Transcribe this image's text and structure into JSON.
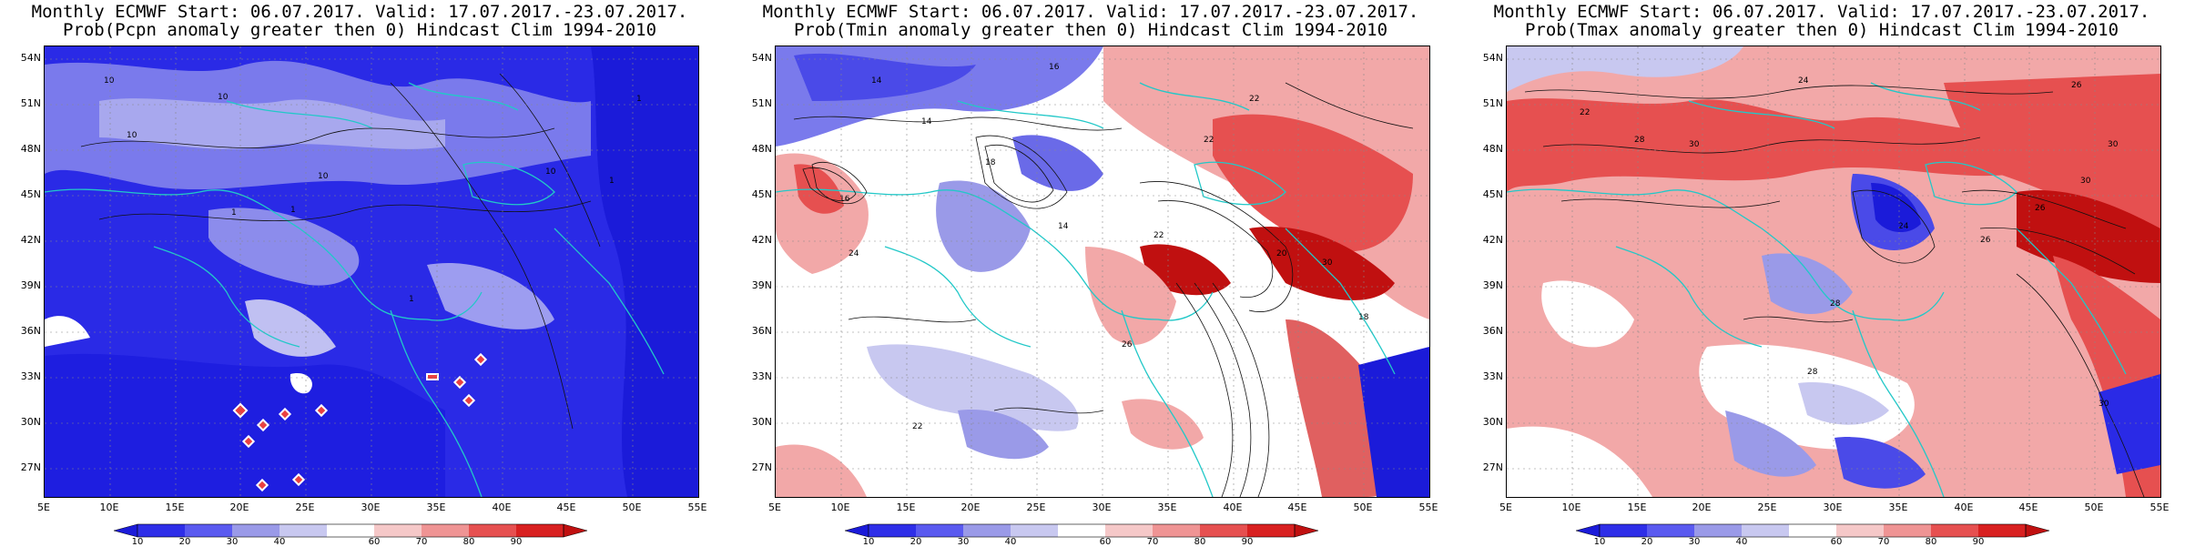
{
  "panels": [
    {
      "title_line1": "Monthly ECMWF Start: 06.07.2017. Valid: 17.07.2017.-23.07.2017.",
      "title_line2": "Prob(Pcpn anomaly greater then 0) Hindcast Clim 1994-2010",
      "variable": "Pcpn",
      "dominant": "blue",
      "contour_labels": [
        "10",
        "10",
        "10",
        "1",
        "1",
        "1",
        "10",
        "10",
        "1",
        "1"
      ]
    },
    {
      "title_line1": "Monthly ECMWF Start: 06.07.2017. Valid: 17.07.2017.-23.07.2017.",
      "title_line2": "Prob(Tmin anomaly greater then 0) Hindcast Clim 1994-2010",
      "variable": "Tmin",
      "dominant": "mixed",
      "contour_labels": [
        "14",
        "14",
        "16",
        "22",
        "22",
        "18",
        "16",
        "14",
        "22",
        "20",
        "24",
        "22",
        "26",
        "18",
        "30"
      ]
    },
    {
      "title_line1": "Monthly ECMWF Start: 06.07.2017. Valid: 17.07.2017.-23.07.2017.",
      "title_line2": "Prob(Tmax anomaly greater then 0) Hindcast Clim 1994-2010",
      "variable": "Tmax",
      "dominant": "red",
      "contour_labels": [
        "24",
        "26",
        "30",
        "22",
        "28",
        "26",
        "30",
        "24",
        "28",
        "30",
        "28",
        "30",
        "26"
      ]
    }
  ],
  "lat_labels": [
    "54N",
    "51N",
    "48N",
    "45N",
    "42N",
    "39N",
    "36N",
    "33N",
    "30N",
    "27N"
  ],
  "lon_labels": [
    "5E",
    "10E",
    "15E",
    "20E",
    "25E",
    "30E",
    "35E",
    "40E",
    "45E",
    "50E",
    "55E"
  ],
  "colorbar": {
    "labels": [
      "10",
      "20",
      "30",
      "40",
      "60",
      "70",
      "80",
      "90"
    ],
    "colors": [
      "#1b1bd9",
      "#2e2ee8",
      "#5a5af0",
      "#9a9ae8",
      "#c8c8f0",
      "#ffffff",
      "#f5c8c8",
      "#ef9494",
      "#e65050",
      "#d82020"
    ]
  }
}
